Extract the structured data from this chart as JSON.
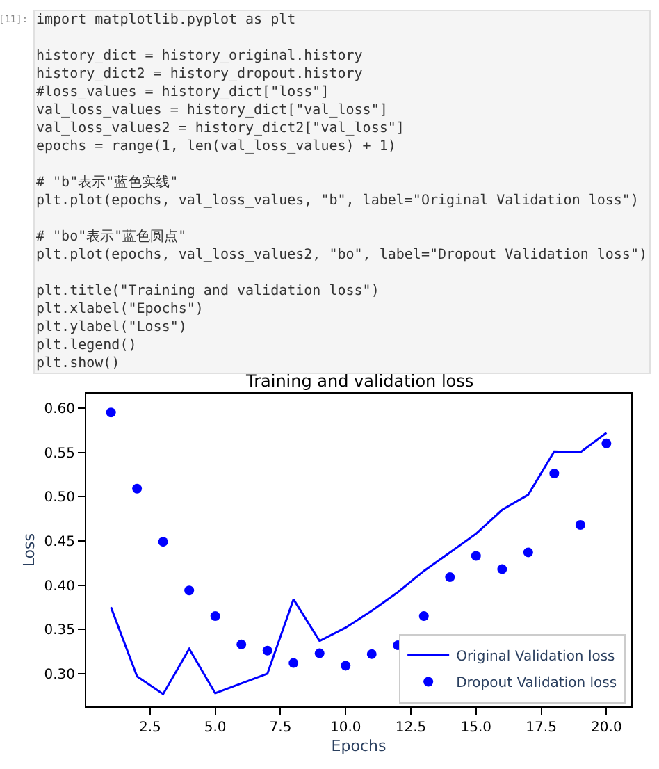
{
  "chart_data": {
    "type": "line",
    "title": "Training and validation loss",
    "xlabel": "Epochs",
    "ylabel": "Loss",
    "annotations": [
      "[11]:",
      "import matplotlib.pyplot as plt\n\nhistory_dict = history_original.history\nhistory_dict2 = history_dropout.history\n#loss_values = history_dict[\"loss\"]\nval_loss_values = history_dict[\"val_loss\"]\nval_loss_values2 = history_dict2[\"val_loss\"]\nepochs = range(1, len(val_loss_values) + 1)\n\n# \"b\"表示\"蓝色实线\"\nplt.plot(epochs, val_loss_values, \"b\", label=\"Original Validation loss\")\n\n# \"bo\"表示\"蓝色圆点\"\nplt.plot(epochs, val_loss_values2, \"bo\", label=\"Dropout Validation loss\")\n\nplt.title(\"Training and validation loss\")\nplt.xlabel(\"Epochs\")\nplt.ylabel(\"Loss\")\nplt.legend()\nplt.show()"
    ],
    "x": [
      1,
      2,
      3,
      4,
      5,
      6,
      7,
      8,
      9,
      10,
      11,
      12,
      13,
      14,
      15,
      16,
      17,
      18,
      19,
      20
    ],
    "series": [
      {
        "name": "Original Validation loss",
        "color": "#0000ff",
        "marker": "none",
        "line_style": "solid",
        "values": [
          0.375,
          0.297,
          0.277,
          0.328,
          0.278,
          0.289,
          0.3,
          0.384,
          0.337,
          0.352,
          0.371,
          0.392,
          0.416,
          0.437,
          0.458,
          0.485,
          0.502,
          0.551,
          0.55,
          0.572
        ]
      },
      {
        "name": "Dropout Validation loss",
        "type": "scatter",
        "color": "#0000ff",
        "marker": "circle",
        "values": [
          0.595,
          0.509,
          0.449,
          0.394,
          0.365,
          0.333,
          0.326,
          0.312,
          0.323,
          0.309,
          0.322,
          0.332,
          0.365,
          0.409,
          0.433,
          0.418,
          0.437,
          0.526,
          0.468,
          0.56
        ]
      }
    ],
    "xlim": [
      0.05,
      20.95
    ],
    "xticks": [
      2.5,
      {
        "value": 5,
        "label": "5.0"
      },
      7.5,
      {
        "value": 10,
        "label": "10.0"
      },
      12.5,
      {
        "value": 15,
        "label": "15.0"
      },
      17.5,
      {
        "value": 20,
        "label": "20.0"
      }
    ],
    "ylim": [
      0.263,
      0.616
    ],
    "yticks": [
      {
        "value": 0.3,
        "label": "0.30"
      },
      0.35,
      {
        "value": 0.4,
        "label": "0.40"
      },
      0.45,
      {
        "value": 0.5,
        "label": "0.50"
      },
      0.55,
      {
        "value": 0.6,
        "label": "0.60"
      }
    ],
    "legend": "bottom right"
  }
}
